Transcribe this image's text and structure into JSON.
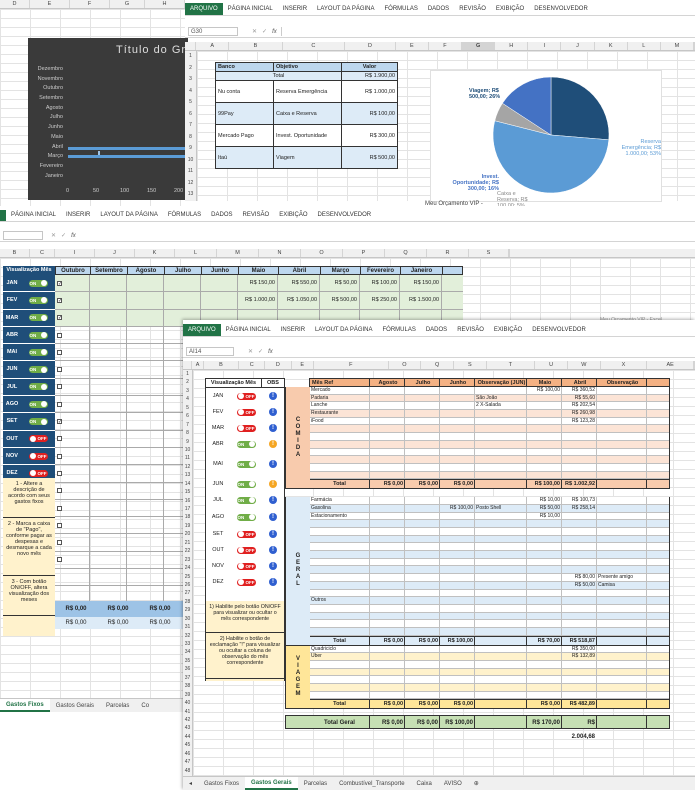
{
  "w1": {
    "tabs": [
      "ARQUIVO",
      "PÁGINA INICIAL",
      "INSERIR",
      "LAYOUT DA PÁGINA",
      "FÓRMULAS",
      "DADOS",
      "REVISÃO",
      "EXIBIÇÃO",
      "DESENVOLVEDOR"
    ],
    "namebox": "G30",
    "fx": "fx",
    "cols": [
      "A",
      "B",
      "C",
      "D",
      "E",
      "F",
      "G",
      "H",
      "I",
      "J",
      "K",
      "L",
      "M"
    ],
    "headers": [
      "Banco",
      "Objetivo",
      "Valor"
    ],
    "total_label": "Total",
    "total_value": "R$ 1.900,00",
    "rows": [
      {
        "banco": "Nu conta",
        "objetivo": "Reserva Emergência",
        "valor": "R$ 1.000,00"
      },
      {
        "banco": "99Pay",
        "objetivo": "Caixa e Reserva",
        "valor": "R$ 100,00"
      },
      {
        "banco": "Mercado Pago",
        "objetivo": "Invest. Oportunidade",
        "valor": "R$ 300,00"
      },
      {
        "banco": "Itaú",
        "objetivo": "Viagem",
        "valor": "R$ 500,00"
      }
    ],
    "status": "Meu Orçamento VIP -"
  },
  "bar_chart": {
    "title": "Título do Gr",
    "months": [
      "Dezembro",
      "Novembro",
      "Outubro",
      "Setembro",
      "Agosto",
      "Julho",
      "Junho",
      "Maio",
      "Abril",
      "Março",
      "Fevereiro",
      "Janeiro"
    ],
    "ticks": [
      "0",
      "50",
      "100",
      "150",
      "200"
    ]
  },
  "chart_data": {
    "type": "pie",
    "labels": [
      "Viagem",
      "Reserva Emergência",
      "Caixa e Reserva",
      "Invest. Oportunidade"
    ],
    "values": [
      500,
      1000,
      100,
      300
    ],
    "label_texts": [
      "Viagem; R$ 500,00; 26%",
      "Reserva Emergência; R$ 1.000,00; 53%",
      "Caixa e Reserva; R$ 100,00; 5%",
      "Invest. Oportunidade; R$ 300,00; 16%"
    ],
    "colors": [
      "#1f4e79",
      "#5b9bd5",
      "#a5a5a5",
      "#4472c4"
    ]
  },
  "w2": {
    "tabs": [
      "PÁGINA INICIAL",
      "INSERIR",
      "LAYOUT DA PÁGINA",
      "FÓRMULAS",
      "DADOS",
      "REVISÃO",
      "EXIBIÇÃO",
      "DESENVOLVEDOR"
    ],
    "cols": [
      "B",
      "C",
      "I",
      "J",
      "K",
      "L",
      "M",
      "N",
      "O",
      "P",
      "Q",
      "R",
      "S"
    ],
    "viz_header": "Visualização Mês",
    "month_headers": [
      "Outubro",
      "Setembro",
      "Agosto",
      "Julho",
      "Junho",
      "Maio",
      "Abril",
      "Março",
      "Fevereiro",
      "Janeiro"
    ],
    "months": [
      {
        "m": "JAN",
        "s": "ON"
      },
      {
        "m": "FEV",
        "s": "ON"
      },
      {
        "m": "MAR",
        "s": "ON"
      },
      {
        "m": "ABR",
        "s": "ON"
      },
      {
        "m": "MAI",
        "s": "ON"
      },
      {
        "m": "JUN",
        "s": "ON"
      },
      {
        "m": "JUL",
        "s": "ON"
      },
      {
        "m": "AGO",
        "s": "ON"
      },
      {
        "m": "SET",
        "s": "ON"
      },
      {
        "m": "OUT",
        "s": "OFF"
      },
      {
        "m": "NOV",
        "s": "OFF"
      },
      {
        "m": "DEZ",
        "s": "OFF"
      }
    ],
    "row1": [
      "R$ 150,00",
      "R$ 550,00",
      "R$ 50,00",
      "R$ 100,00",
      "R$ 150,00"
    ],
    "row2": [
      "R$ 1.000,00",
      "R$ 1.050,00",
      "R$ 500,00",
      "R$ 250,00",
      "R$ 1.500,00"
    ],
    "notes": [
      "1 - Altere a descrição de acordo com seus gastos fixos",
      "2 - Marca a caixa de \"Pago\", conforme pagar as despesas e desmarque a cada novo mês",
      "3 - Com botão ON/OFF, altera visualização dos meses"
    ],
    "footer1": "R$ 0,00",
    "footer2": "R$ 0,00",
    "sheet_tabs": [
      "Gastos Fixos",
      "Gastos Gerais",
      "Parcelas",
      "Co"
    ],
    "status": "Meu Orçamento VIP - Excel"
  },
  "w3": {
    "tabs": [
      "ARQUIVO",
      "PÁGINA INICIAL",
      "INSERIR",
      "LAYOUT DA PÁGINA",
      "FÓRMULAS",
      "DADOS",
      "REVISÃO",
      "EXIBIÇÃO",
      "DESENVOLVEDOR"
    ],
    "namebox": "AI14",
    "fx": "fx",
    "cols": [
      "A",
      "B",
      "C",
      "D",
      "E",
      "F",
      "O",
      "Q",
      "S",
      "T",
      "U",
      "W",
      "X",
      "AE"
    ],
    "viz_header": "Visualização Mês",
    "obs_header": "OBS",
    "months": [
      {
        "m": "JAN",
        "s": "OFF",
        "e": "blue"
      },
      {
        "m": "FEV",
        "s": "OFF",
        "e": "blue"
      },
      {
        "m": "MAR",
        "s": "OFF",
        "e": "blue"
      },
      {
        "m": "ABR",
        "s": "ON",
        "e": "orange"
      },
      {
        "m": "MAI",
        "s": "ON",
        "e": "blue"
      },
      {
        "m": "JUN",
        "s": "ON",
        "e": "orange"
      },
      {
        "m": "JUL",
        "s": "ON",
        "e": "blue"
      },
      {
        "m": "AGO",
        "s": "ON",
        "e": "blue"
      },
      {
        "m": "SET",
        "s": "OFF",
        "e": "blue"
      },
      {
        "m": "OUT",
        "s": "OFF",
        "e": "blue"
      },
      {
        "m": "NOV",
        "s": "OFF",
        "e": "blue"
      },
      {
        "m": "DEZ",
        "s": "OFF",
        "e": "blue"
      }
    ],
    "notes": [
      "1) Habilite pelo botão ON/OFF para visualizar ou ocultar o mês correspondente",
      "2) Habilite o botão de exclamação \"!\" para visualizar ou ocultar a coluna de observação do mês correspondente"
    ],
    "table_headers": [
      "Mês Ref",
      "Agosto",
      "Julho",
      "Junho",
      "Observação (JUN)",
      "Maio",
      "Abril",
      "Observação (ABR)"
    ],
    "comida": {
      "label": "COMIDA",
      "items": [
        {
          "n": "Mercado",
          "junObs": "",
          "maio": "R$ 100,00",
          "abril": "R$ 360,52",
          "abrObs": ""
        },
        {
          "n": "Padaria",
          "junObs": "São João",
          "maio": "",
          "abril": "R$ 55,60",
          "abrObs": ""
        },
        {
          "n": "Lanche",
          "junObs": "2 X-Salada",
          "maio": "",
          "abril": "R$ 202,54",
          "abrObs": ""
        },
        {
          "n": "Restaurante",
          "junObs": "",
          "maio": "",
          "abril": "R$ 260,98",
          "abrObs": ""
        },
        {
          "n": "iFood",
          "junObs": "",
          "maio": "",
          "abril": "R$ 123,28",
          "abrObs": ""
        }
      ],
      "total": [
        "Total",
        "R$ 0,00",
        "R$ 0,00",
        "R$ 0,00",
        "",
        "R$ 100,00",
        "R$ 1.002,92"
      ]
    },
    "geral": {
      "label": "GERAL",
      "items": [
        {
          "n": "Farmácia",
          "jun": "",
          "junObs": "",
          "maio": "R$ 10,00",
          "abril": "R$ 100,73",
          "abrObs": ""
        },
        {
          "n": "Gasolina",
          "jun": "R$ 100,00",
          "junObs": "Posto Shell",
          "maio": "R$ 50,00",
          "abril": "R$ 258,14",
          "abrObs": ""
        },
        {
          "n": "Estacionamento",
          "jun": "",
          "junObs": "",
          "maio": "R$ 10,00",
          "abril": "",
          "abrObs": ""
        }
      ],
      "extra": [
        {
          "abril": "R$ 80,00",
          "abrObs": "Presente amigo"
        },
        {
          "abril": "R$ 50,00",
          "abrObs": "Camisa"
        }
      ],
      "outros": "Outros",
      "total": [
        "Total",
        "R$ 0,00",
        "R$ 0,00",
        "R$ 100,00",
        "",
        "R$ 70,00",
        "R$ 518,87"
      ]
    },
    "viagem": {
      "label": "VIAGEM",
      "items": [
        {
          "n": "Quadriciclo",
          "abril": "R$ 350,00"
        },
        {
          "n": "Uber",
          "abril": "R$ 132,89"
        }
      ],
      "total": [
        "Total",
        "R$ 0,00",
        "R$ 0,00",
        "R$ 0,00",
        "",
        "R$ 0,00",
        "R$ 482,89"
      ]
    },
    "grand": [
      "Total Geral",
      "R$ 0,00",
      "R$ 0,00",
      "R$ 100,00",
      "",
      "R$ 170,00",
      "R$ 2.004,68"
    ],
    "sheet_tabs": [
      "Gastos Fixos",
      "Gastos Gerais",
      "Parcelas",
      "Combustível_Transporte",
      "Caixa",
      "AVISO"
    ]
  }
}
